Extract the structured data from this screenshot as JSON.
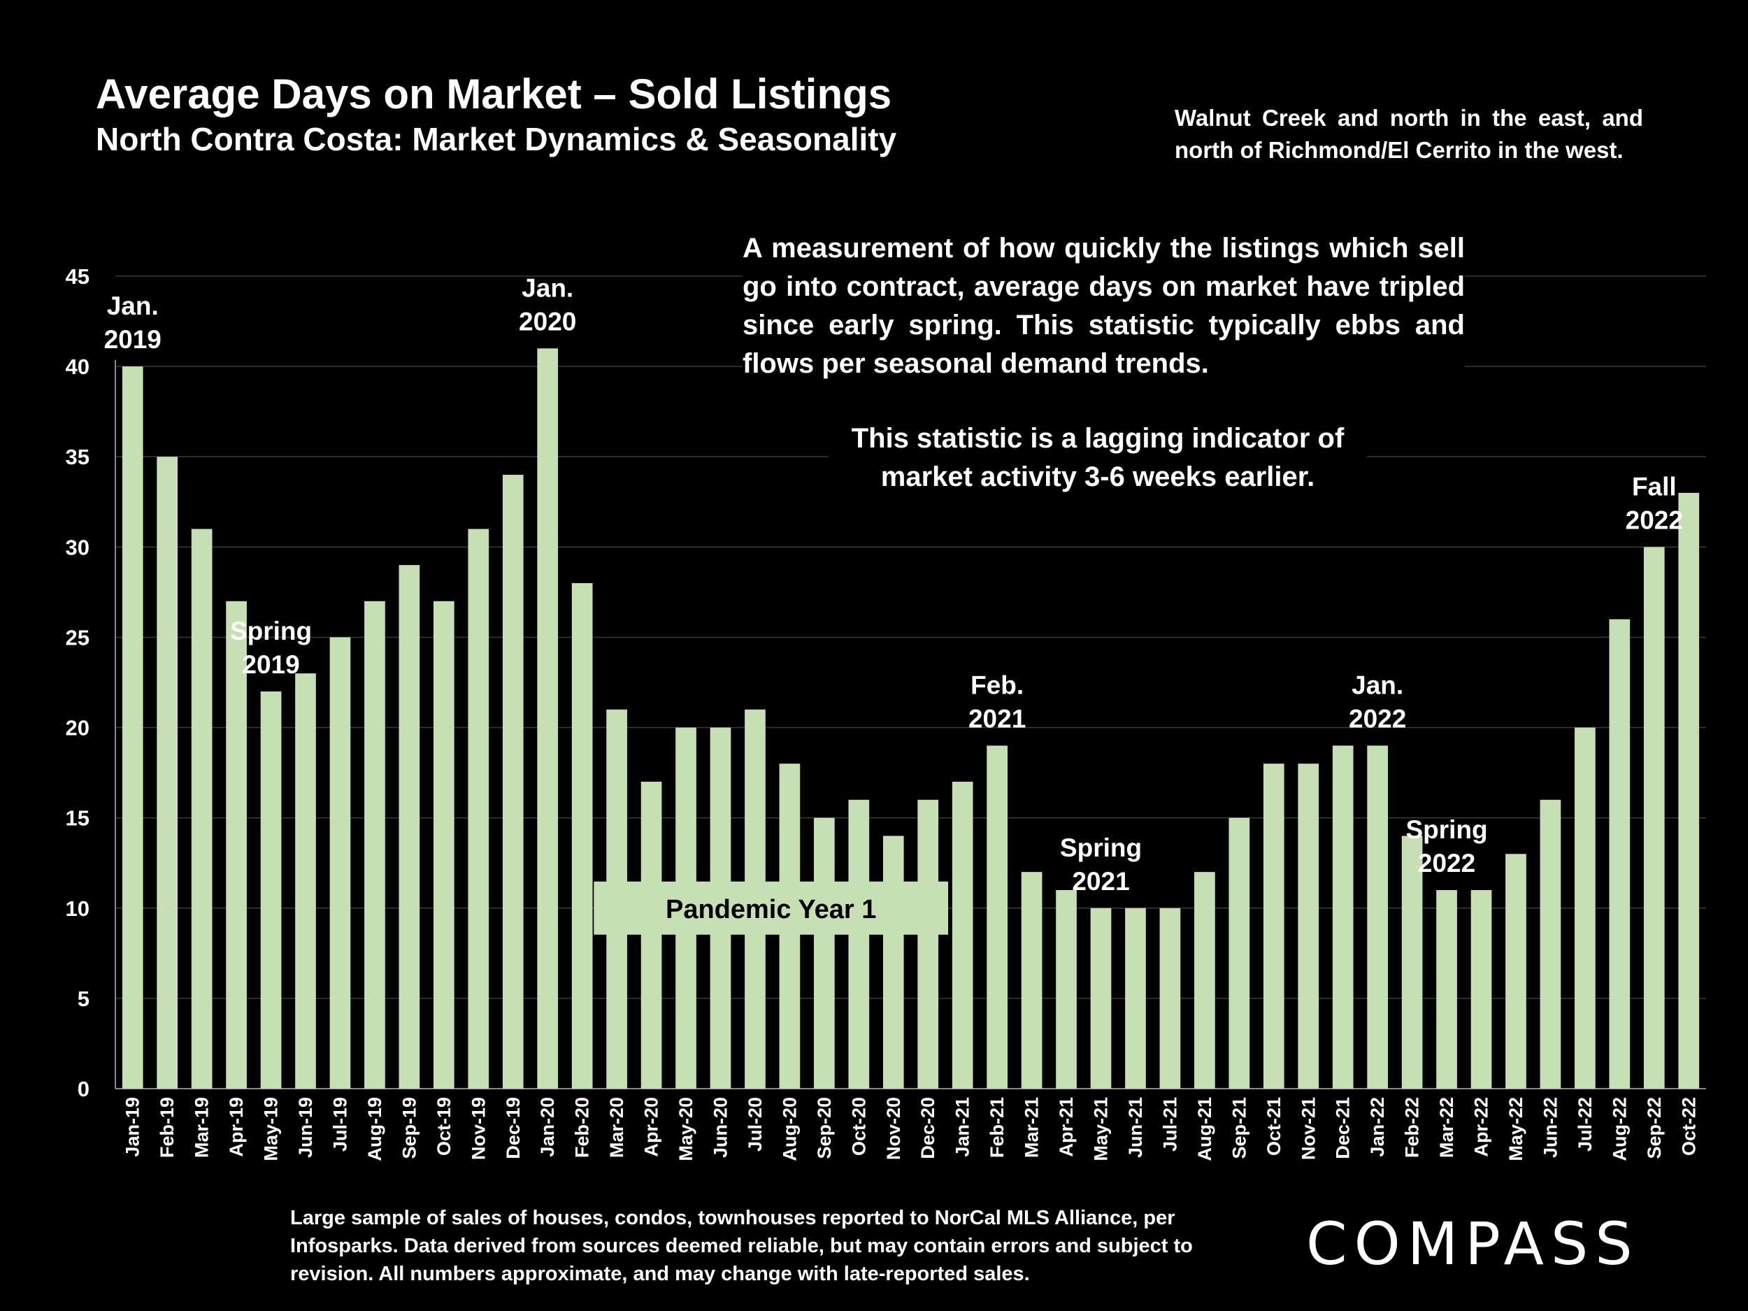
{
  "title": "Average Days on Market – Sold Listings",
  "subtitle": "North Contra Costa: Market Dynamics & Seasonality",
  "region_note": "Walnut Creek and north in the east, and north of Richmond/El Cerrito in the west.",
  "description": "A measurement of how quickly the listings which sell go into contract, average days on market have tripled since early spring. This statistic typically ebbs and flows per seasonal demand trends.",
  "lagging_note": "This statistic is a lagging indicator of market activity 3-6 weeks earlier.",
  "footnote": "Large sample of sales of houses, condos, townhouses reported to NorCal MLS Alliance, per Infosparks. Data derived from sources deemed reliable, but may contain errors and subject to revision. All numbers approximate, and may change with late-reported sales.",
  "logo": "COMPASS",
  "colors": {
    "background": "#000000",
    "bar": "#c6e0b4",
    "text": "#ffffff",
    "grid": "#3a3a3a"
  },
  "chart_data": {
    "type": "bar",
    "categories": [
      "Jan-19",
      "Feb-19",
      "Mar-19",
      "Apr-19",
      "May-19",
      "Jun-19",
      "Jul-19",
      "Aug-19",
      "Sep-19",
      "Oct-19",
      "Nov-19",
      "Dec-19",
      "Jan-20",
      "Feb-20",
      "Mar-20",
      "Apr-20",
      "May-20",
      "Jun-20",
      "Jul-20",
      "Aug-20",
      "Sep-20",
      "Oct-20",
      "Nov-20",
      "Dec-20",
      "Jan-21",
      "Feb-21",
      "Mar-21",
      "Apr-21",
      "May-21",
      "Jun-21",
      "Jul-21",
      "Aug-21",
      "Sep-21",
      "Oct-21",
      "Nov-21",
      "Dec-21",
      "Jan-22",
      "Feb-22",
      "Mar-22",
      "Apr-22",
      "May-22",
      "Jun-22",
      "Jul-22",
      "Aug-22",
      "Sep-22",
      "Oct-22"
    ],
    "values": [
      40,
      35,
      31,
      27,
      22,
      23,
      25,
      27,
      29,
      27,
      31,
      34,
      41,
      28,
      21,
      17,
      20,
      20,
      21,
      18,
      15,
      16,
      14,
      16,
      17,
      19,
      12,
      11,
      10,
      10,
      10,
      12,
      15,
      18,
      18,
      19,
      19,
      14,
      11,
      11,
      13,
      16,
      20,
      26,
      30,
      33
    ],
    "ylim": [
      0,
      45
    ],
    "yticks": [
      0,
      5,
      10,
      15,
      20,
      25,
      30,
      35,
      40,
      45
    ],
    "grid": true,
    "annotations": [
      {
        "text": [
          "Jan.",
          "2019"
        ],
        "category": "Jan-19"
      },
      {
        "text": [
          "Jan.",
          "2020"
        ],
        "category": "Jan-20"
      },
      {
        "text": [
          "Spring",
          "2019"
        ],
        "category": "May-19"
      },
      {
        "text": [
          "Feb.",
          "2021"
        ],
        "category": "Feb-21"
      },
      {
        "text": [
          "Spring",
          "2021"
        ],
        "category": "May-21"
      },
      {
        "text": [
          "Jan.",
          "2022"
        ],
        "category": "Jan-22"
      },
      {
        "text": [
          "Spring",
          "2022"
        ],
        "category": "Mar-22"
      },
      {
        "text": [
          "Fall",
          "2022"
        ],
        "category": "Sep-22"
      }
    ],
    "period_label": {
      "text": "Pandemic Year 1",
      "from": "Mar-20",
      "to": "Dec-20",
      "level": 10
    }
  }
}
